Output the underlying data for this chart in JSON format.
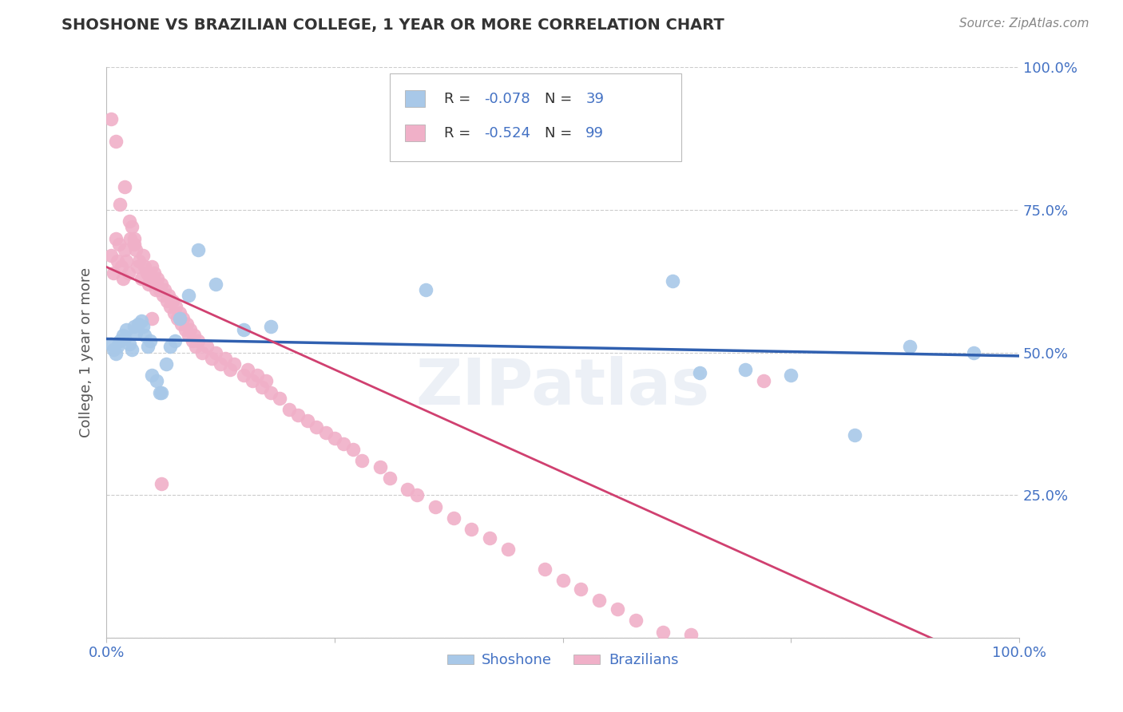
{
  "title": "SHOSHONE VS BRAZILIAN COLLEGE, 1 YEAR OR MORE CORRELATION CHART",
  "source": "Source: ZipAtlas.com",
  "ylabel": "College, 1 year or more",
  "xlim": [
    0,
    1
  ],
  "ylim": [
    0,
    1
  ],
  "shoshone_R": -0.078,
  "shoshone_N": 39,
  "brazilian_R": -0.524,
  "brazilian_N": 99,
  "shoshone_color": "#a8c8e8",
  "brazilian_color": "#f0b0c8",
  "shoshone_line_color": "#3060b0",
  "brazilian_line_color": "#d04070",
  "watermark": "ZIPatlas",
  "shoshone_x": [
    0.005,
    0.008,
    0.01,
    0.012,
    0.015,
    0.018,
    0.02,
    0.022,
    0.025,
    0.028,
    0.03,
    0.032,
    0.035,
    0.038,
    0.04,
    0.042,
    0.045,
    0.048,
    0.05,
    0.055,
    0.058,
    0.06,
    0.065,
    0.07,
    0.075,
    0.08,
    0.09,
    0.1,
    0.12,
    0.15,
    0.18,
    0.35,
    0.62,
    0.65,
    0.7,
    0.75,
    0.82,
    0.88,
    0.95
  ],
  "shoshone_y": [
    0.515,
    0.505,
    0.498,
    0.51,
    0.52,
    0.53,
    0.525,
    0.54,
    0.515,
    0.505,
    0.545,
    0.535,
    0.55,
    0.555,
    0.545,
    0.53,
    0.51,
    0.52,
    0.46,
    0.45,
    0.43,
    0.43,
    0.48,
    0.51,
    0.52,
    0.56,
    0.6,
    0.68,
    0.62,
    0.54,
    0.545,
    0.61,
    0.625,
    0.465,
    0.47,
    0.46,
    0.355,
    0.51,
    0.5
  ],
  "brazilian_x": [
    0.005,
    0.008,
    0.01,
    0.012,
    0.014,
    0.016,
    0.018,
    0.02,
    0.022,
    0.024,
    0.026,
    0.028,
    0.03,
    0.032,
    0.034,
    0.036,
    0.038,
    0.04,
    0.042,
    0.044,
    0.046,
    0.048,
    0.05,
    0.052,
    0.054,
    0.056,
    0.058,
    0.06,
    0.062,
    0.064,
    0.066,
    0.068,
    0.07,
    0.072,
    0.074,
    0.076,
    0.078,
    0.08,
    0.082,
    0.084,
    0.086,
    0.088,
    0.09,
    0.092,
    0.094,
    0.096,
    0.098,
    0.1,
    0.105,
    0.11,
    0.115,
    0.12,
    0.125,
    0.13,
    0.135,
    0.14,
    0.15,
    0.155,
    0.16,
    0.165,
    0.17,
    0.175,
    0.18,
    0.19,
    0.2,
    0.21,
    0.22,
    0.23,
    0.24,
    0.25,
    0.26,
    0.27,
    0.28,
    0.3,
    0.31,
    0.33,
    0.34,
    0.36,
    0.38,
    0.4,
    0.42,
    0.44,
    0.48,
    0.5,
    0.52,
    0.54,
    0.56,
    0.58,
    0.61,
    0.64,
    0.005,
    0.01,
    0.015,
    0.02,
    0.025,
    0.03,
    0.05,
    0.06,
    0.72
  ],
  "brazilian_y": [
    0.67,
    0.64,
    0.7,
    0.66,
    0.69,
    0.65,
    0.63,
    0.68,
    0.66,
    0.64,
    0.7,
    0.72,
    0.69,
    0.68,
    0.65,
    0.66,
    0.63,
    0.67,
    0.65,
    0.64,
    0.62,
    0.63,
    0.65,
    0.64,
    0.61,
    0.63,
    0.61,
    0.62,
    0.6,
    0.61,
    0.59,
    0.6,
    0.58,
    0.59,
    0.57,
    0.58,
    0.56,
    0.57,
    0.55,
    0.56,
    0.54,
    0.55,
    0.53,
    0.54,
    0.52,
    0.53,
    0.51,
    0.52,
    0.5,
    0.51,
    0.49,
    0.5,
    0.48,
    0.49,
    0.47,
    0.48,
    0.46,
    0.47,
    0.45,
    0.46,
    0.44,
    0.45,
    0.43,
    0.42,
    0.4,
    0.39,
    0.38,
    0.37,
    0.36,
    0.35,
    0.34,
    0.33,
    0.31,
    0.3,
    0.28,
    0.26,
    0.25,
    0.23,
    0.21,
    0.19,
    0.175,
    0.155,
    0.12,
    0.1,
    0.085,
    0.065,
    0.05,
    0.03,
    0.01,
    0.005,
    0.91,
    0.87,
    0.76,
    0.79,
    0.73,
    0.7,
    0.56,
    0.27,
    0.45
  ]
}
